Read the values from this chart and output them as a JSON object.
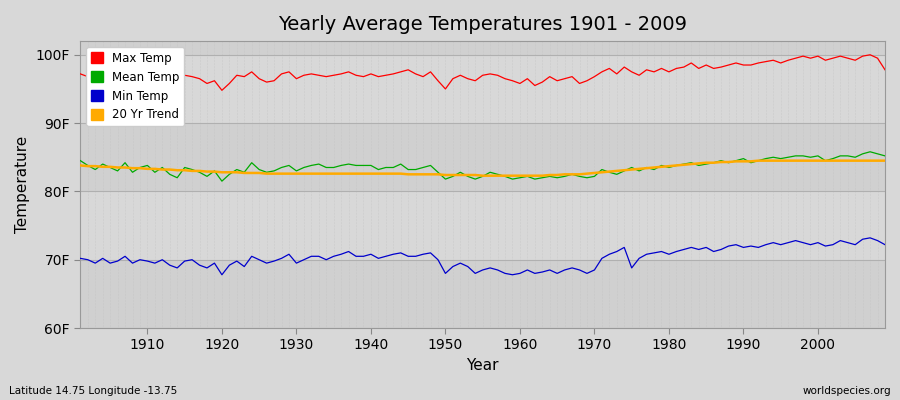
{
  "title": "Yearly Average Temperatures 1901 - 2009",
  "xlabel": "Year",
  "ylabel": "Temperature",
  "xlim": [
    1901,
    2009
  ],
  "ylim": [
    60,
    102
  ],
  "yticks": [
    60,
    70,
    80,
    90,
    100
  ],
  "ytick_labels": [
    "60F",
    "70F",
    "80F",
    "90F",
    "100F"
  ],
  "xticks": [
    1910,
    1920,
    1930,
    1940,
    1950,
    1960,
    1970,
    1980,
    1990,
    2000
  ],
  "legend_labels": [
    "Max Temp",
    "Mean Temp",
    "Min Temp",
    "20 Yr Trend"
  ],
  "colors": {
    "max": "#ff0000",
    "mean": "#00aa00",
    "min": "#0000cc",
    "trend": "#ffaa00",
    "background": "#dcdcdc",
    "plot_bg": "#dcdcdc",
    "grid_dash": "#bbbbbb",
    "grid_solid": "#cccccc"
  },
  "subtitle_left": "Latitude 14.75 Longitude -13.75",
  "subtitle_right": "worldspecies.org",
  "years": [
    1901,
    1902,
    1903,
    1904,
    1905,
    1906,
    1907,
    1908,
    1909,
    1910,
    1911,
    1912,
    1913,
    1914,
    1915,
    1916,
    1917,
    1918,
    1919,
    1920,
    1921,
    1922,
    1923,
    1924,
    1925,
    1926,
    1927,
    1928,
    1929,
    1930,
    1931,
    1932,
    1933,
    1934,
    1935,
    1936,
    1937,
    1938,
    1939,
    1940,
    1941,
    1942,
    1943,
    1944,
    1945,
    1946,
    1947,
    1948,
    1949,
    1950,
    1951,
    1952,
    1953,
    1954,
    1955,
    1956,
    1957,
    1958,
    1959,
    1960,
    1961,
    1962,
    1963,
    1964,
    1965,
    1966,
    1967,
    1968,
    1969,
    1970,
    1971,
    1972,
    1973,
    1974,
    1975,
    1976,
    1977,
    1978,
    1979,
    1980,
    1981,
    1982,
    1983,
    1984,
    1985,
    1986,
    1987,
    1988,
    1989,
    1990,
    1991,
    1992,
    1993,
    1994,
    1995,
    1996,
    1997,
    1998,
    1999,
    2000,
    2001,
    2002,
    2003,
    2004,
    2005,
    2006,
    2007,
    2008,
    2009
  ],
  "max_temp": [
    97.2,
    96.8,
    96.5,
    96.2,
    96.8,
    96.2,
    97.0,
    96.5,
    97.2,
    97.5,
    96.8,
    97.2,
    96.5,
    96.0,
    97.0,
    96.8,
    96.5,
    95.8,
    96.2,
    94.8,
    95.8,
    97.0,
    96.8,
    97.5,
    96.5,
    96.0,
    96.2,
    97.2,
    97.5,
    96.5,
    97.0,
    97.2,
    97.0,
    96.8,
    97.0,
    97.2,
    97.5,
    97.0,
    96.8,
    97.2,
    96.8,
    97.0,
    97.2,
    97.5,
    97.8,
    97.2,
    96.8,
    97.5,
    96.2,
    95.0,
    96.5,
    97.0,
    96.5,
    96.2,
    97.0,
    97.2,
    97.0,
    96.5,
    96.2,
    95.8,
    96.5,
    95.5,
    96.0,
    96.8,
    96.2,
    96.5,
    96.8,
    95.8,
    96.2,
    96.8,
    97.5,
    98.0,
    97.2,
    98.2,
    97.5,
    97.0,
    97.8,
    97.5,
    98.0,
    97.5,
    98.0,
    98.2,
    98.8,
    98.0,
    98.5,
    98.0,
    98.2,
    98.5,
    98.8,
    98.5,
    98.5,
    98.8,
    99.0,
    99.2,
    98.8,
    99.2,
    99.5,
    99.8,
    99.5,
    99.8,
    99.2,
    99.5,
    99.8,
    99.5,
    99.2,
    99.8,
    100.0,
    99.5,
    97.8
  ],
  "mean_temp": [
    84.5,
    83.8,
    83.2,
    84.0,
    83.5,
    83.0,
    84.2,
    82.8,
    83.5,
    83.8,
    82.8,
    83.5,
    82.5,
    82.0,
    83.5,
    83.2,
    82.8,
    82.2,
    83.0,
    81.5,
    82.5,
    83.2,
    82.8,
    84.2,
    83.2,
    82.8,
    83.0,
    83.5,
    83.8,
    83.0,
    83.5,
    83.8,
    84.0,
    83.5,
    83.5,
    83.8,
    84.0,
    83.8,
    83.8,
    83.8,
    83.2,
    83.5,
    83.5,
    84.0,
    83.2,
    83.2,
    83.5,
    83.8,
    82.8,
    81.8,
    82.2,
    82.8,
    82.2,
    81.8,
    82.2,
    82.8,
    82.5,
    82.2,
    81.8,
    82.0,
    82.2,
    81.8,
    82.0,
    82.2,
    82.0,
    82.2,
    82.5,
    82.2,
    82.0,
    82.2,
    83.2,
    82.8,
    82.5,
    83.0,
    83.5,
    83.0,
    83.5,
    83.2,
    83.8,
    83.5,
    83.8,
    84.0,
    84.2,
    83.8,
    84.0,
    84.2,
    84.5,
    84.2,
    84.5,
    84.8,
    84.2,
    84.5,
    84.8,
    85.0,
    84.8,
    85.0,
    85.2,
    85.2,
    85.0,
    85.2,
    84.5,
    84.8,
    85.2,
    85.2,
    85.0,
    85.5,
    85.8,
    85.5,
    85.2
  ],
  "min_temp": [
    70.2,
    70.0,
    69.5,
    70.2,
    69.5,
    69.8,
    70.5,
    69.5,
    70.0,
    69.8,
    69.5,
    70.0,
    69.2,
    68.8,
    69.8,
    70.0,
    69.2,
    68.8,
    69.5,
    67.8,
    69.2,
    69.8,
    69.0,
    70.5,
    70.0,
    69.5,
    69.8,
    70.2,
    70.8,
    69.5,
    70.0,
    70.5,
    70.5,
    70.0,
    70.5,
    70.8,
    71.2,
    70.5,
    70.5,
    70.8,
    70.2,
    70.5,
    70.8,
    71.0,
    70.5,
    70.5,
    70.8,
    71.0,
    70.0,
    68.0,
    69.0,
    69.5,
    69.0,
    68.0,
    68.5,
    68.8,
    68.5,
    68.0,
    67.8,
    68.0,
    68.5,
    68.0,
    68.2,
    68.5,
    68.0,
    68.5,
    68.8,
    68.5,
    68.0,
    68.5,
    70.2,
    70.8,
    71.2,
    71.8,
    68.8,
    70.2,
    70.8,
    71.0,
    71.2,
    70.8,
    71.2,
    71.5,
    71.8,
    71.5,
    71.8,
    71.2,
    71.5,
    72.0,
    72.2,
    71.8,
    72.0,
    71.8,
    72.2,
    72.5,
    72.2,
    72.5,
    72.8,
    72.5,
    72.2,
    72.5,
    72.0,
    72.2,
    72.8,
    72.5,
    72.2,
    73.0,
    73.2,
    72.8,
    72.2
  ],
  "trend_temp": [
    83.8,
    83.7,
    83.7,
    83.6,
    83.6,
    83.5,
    83.5,
    83.4,
    83.4,
    83.3,
    83.3,
    83.2,
    83.2,
    83.1,
    83.1,
    83.0,
    83.0,
    82.9,
    82.9,
    82.8,
    82.8,
    82.8,
    82.7,
    82.7,
    82.7,
    82.6,
    82.6,
    82.6,
    82.6,
    82.6,
    82.6,
    82.6,
    82.6,
    82.6,
    82.6,
    82.6,
    82.6,
    82.6,
    82.6,
    82.6,
    82.6,
    82.6,
    82.6,
    82.6,
    82.5,
    82.5,
    82.5,
    82.5,
    82.5,
    82.4,
    82.4,
    82.4,
    82.4,
    82.4,
    82.3,
    82.3,
    82.3,
    82.3,
    82.3,
    82.3,
    82.3,
    82.3,
    82.3,
    82.4,
    82.4,
    82.5,
    82.5,
    82.5,
    82.6,
    82.7,
    82.8,
    82.9,
    83.0,
    83.1,
    83.2,
    83.3,
    83.4,
    83.5,
    83.6,
    83.7,
    83.8,
    83.9,
    84.0,
    84.1,
    84.2,
    84.2,
    84.3,
    84.3,
    84.4,
    84.4,
    84.4,
    84.5,
    84.5,
    84.5,
    84.5,
    84.5,
    84.5,
    84.5,
    84.5,
    84.5,
    84.5,
    84.5,
    84.5,
    84.5,
    84.5,
    84.5,
    84.5,
    84.5,
    84.5
  ]
}
